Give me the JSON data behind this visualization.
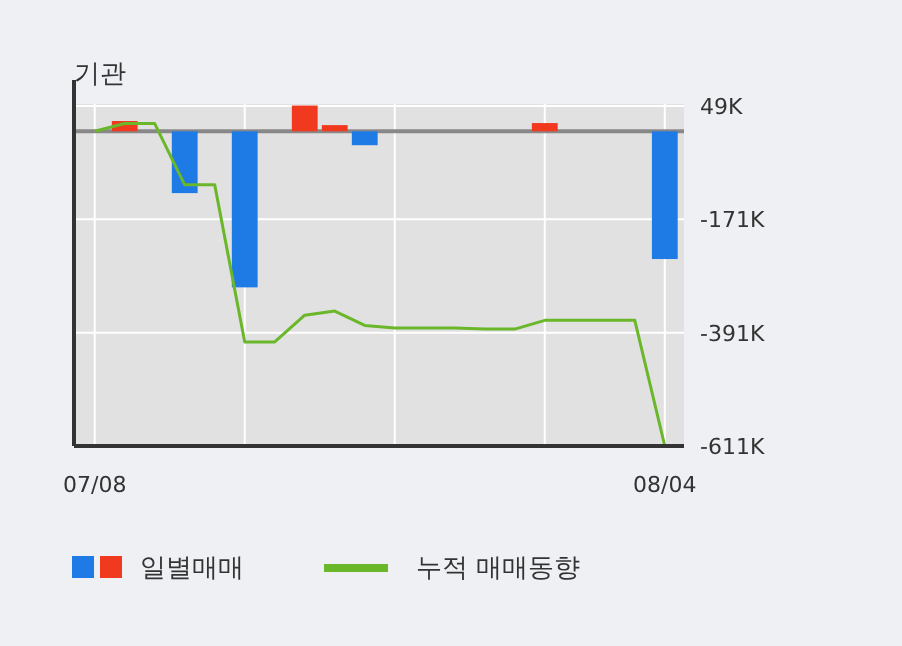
{
  "chart_data": {
    "type": "bar",
    "title": "기관",
    "categories": [
      "07/08",
      null,
      null,
      null,
      null,
      null,
      null,
      null,
      null,
      null,
      null,
      null,
      null,
      null,
      null,
      null,
      null,
      null,
      null,
      "08/04"
    ],
    "series": [
      {
        "name": "일별매매",
        "colors": [
          null,
          "#f0391e",
          null,
          "#1e7be6",
          null,
          "#1e7be6",
          null,
          "#f0391e",
          "#f0391e",
          "#1e7be6",
          null,
          null,
          null,
          null,
          null,
          "#f0391e",
          null,
          null,
          null,
          "#1e7be6"
        ],
        "values": [
          null,
          20,
          null,
          -120,
          null,
          -303,
          null,
          50,
          12,
          -27,
          null,
          null,
          null,
          null,
          null,
          16,
          null,
          null,
          null,
          -248
        ]
      },
      {
        "name": "누적 매매동향",
        "type": "line",
        "color": "#6ab72a",
        "values": [
          0,
          15,
          15,
          -104,
          -104,
          -409,
          -409,
          -357,
          -349,
          -377,
          -382,
          -382,
          -382,
          -384,
          -384,
          -367,
          -367,
          -367,
          -367,
          -611
        ]
      }
    ],
    "ylim": [
      -611,
      53
    ],
    "yticks": [
      {
        "value": 49,
        "label": "49K"
      },
      {
        "value": -171,
        "label": "-171K"
      },
      {
        "value": -391,
        "label": "-391K"
      },
      {
        "value": -611,
        "label": "-611K"
      }
    ],
    "ref_lines": [
      {
        "axis": "y",
        "value": 0,
        "color": "#888888"
      }
    ],
    "grid": true,
    "legend": "bottom"
  }
}
